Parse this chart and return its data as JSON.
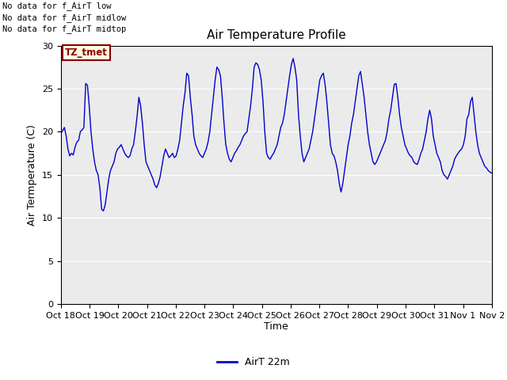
{
  "title": "Air Temperature Profile",
  "xlabel": "Time",
  "ylabel": "Air Termperature (C)",
  "legend_label": "AirT 22m",
  "no_data_texts": [
    "No data for f_AirT low",
    "No data for f_AirT midlow",
    "No data for f_AirT midtop"
  ],
  "tz_tmet_label": "TZ_tmet",
  "ylim": [
    0,
    30
  ],
  "yticks": [
    0,
    5,
    10,
    15,
    20,
    25,
    30
  ],
  "line_color": "#0000cc",
  "background_color": "#ebebeb",
  "outer_background": "#ffffff",
  "x_tick_labels": [
    "Oct 18",
    "Oct 19",
    "Oct 20",
    "Oct 21",
    "Oct 22",
    "Oct 23",
    "Oct 24",
    "Oct 25",
    "Oct 26",
    "Oct 27",
    "Oct 28",
    "Oct 29",
    "Oct 30",
    "Oct 31",
    "Nov 1",
    "Nov 2"
  ],
  "x_tick_positions": [
    0,
    1,
    2,
    3,
    4,
    5,
    6,
    7,
    8,
    9,
    10,
    11,
    12,
    13,
    14,
    15
  ],
  "time_series": [
    19.8,
    20.1,
    20.5,
    19.5,
    18.0,
    17.2,
    17.5,
    17.3,
    18.2,
    18.8,
    19.0,
    20.0,
    20.2,
    20.5,
    25.6,
    25.4,
    23.0,
    20.0,
    18.0,
    16.5,
    15.5,
    15.0,
    13.5,
    11.0,
    10.8,
    11.5,
    13.0,
    14.5,
    15.5,
    16.0,
    16.5,
    17.5,
    18.0,
    18.2,
    18.5,
    18.0,
    17.5,
    17.2,
    17.0,
    17.2,
    18.0,
    18.5,
    20.0,
    21.8,
    24.0,
    23.0,
    21.0,
    18.5,
    16.5,
    16.0,
    15.5,
    15.0,
    14.5,
    13.8,
    13.5,
    14.0,
    14.8,
    16.0,
    17.2,
    18.0,
    17.5,
    17.0,
    17.2,
    17.5,
    17.0,
    17.2,
    18.0,
    19.0,
    21.0,
    23.0,
    24.5,
    26.8,
    26.5,
    24.0,
    22.0,
    19.5,
    18.5,
    18.0,
    17.5,
    17.2,
    17.0,
    17.5,
    18.0,
    18.8,
    20.0,
    22.0,
    24.0,
    26.0,
    27.5,
    27.2,
    26.5,
    24.0,
    21.0,
    18.5,
    17.5,
    16.8,
    16.5,
    17.0,
    17.5,
    17.8,
    18.2,
    18.5,
    19.0,
    19.5,
    19.8,
    20.0,
    21.5,
    23.0,
    25.0,
    27.5,
    28.0,
    27.8,
    27.2,
    26.0,
    23.5,
    20.0,
    17.5,
    17.0,
    16.8,
    17.2,
    17.5,
    18.0,
    18.5,
    19.5,
    20.5,
    21.0,
    22.0,
    23.5,
    25.0,
    26.5,
    27.8,
    28.5,
    27.5,
    26.0,
    22.0,
    19.5,
    17.5,
    16.5,
    17.0,
    17.5,
    18.0,
    19.0,
    20.0,
    21.5,
    23.0,
    24.5,
    26.0,
    26.5,
    26.8,
    25.5,
    23.5,
    21.0,
    18.5,
    17.5,
    17.2,
    16.5,
    15.5,
    14.0,
    13.0,
    14.0,
    15.5,
    17.0,
    18.5,
    19.5,
    21.0,
    22.0,
    23.5,
    25.0,
    26.5,
    27.0,
    25.5,
    24.0,
    22.0,
    20.0,
    18.5,
    17.5,
    16.5,
    16.2,
    16.5,
    17.0,
    17.5,
    18.0,
    18.5,
    19.0,
    20.0,
    21.5,
    22.5,
    24.0,
    25.5,
    25.6,
    24.0,
    22.0,
    20.5,
    19.5,
    18.5,
    18.0,
    17.5,
    17.2,
    17.0,
    16.5,
    16.3,
    16.2,
    16.8,
    17.5,
    18.0,
    19.0,
    20.0,
    21.5,
    22.5,
    21.5,
    19.5,
    18.5,
    17.5,
    17.0,
    16.5,
    15.5,
    15.0,
    14.8,
    14.5,
    15.0,
    15.5,
    16.0,
    16.8,
    17.2,
    17.5,
    17.8,
    18.0,
    18.5,
    19.5,
    21.5,
    22.0,
    23.5,
    24.0,
    22.0,
    20.0,
    18.5,
    17.5,
    17.0,
    16.5,
    16.0,
    15.8,
    15.5,
    15.3,
    15.2
  ]
}
